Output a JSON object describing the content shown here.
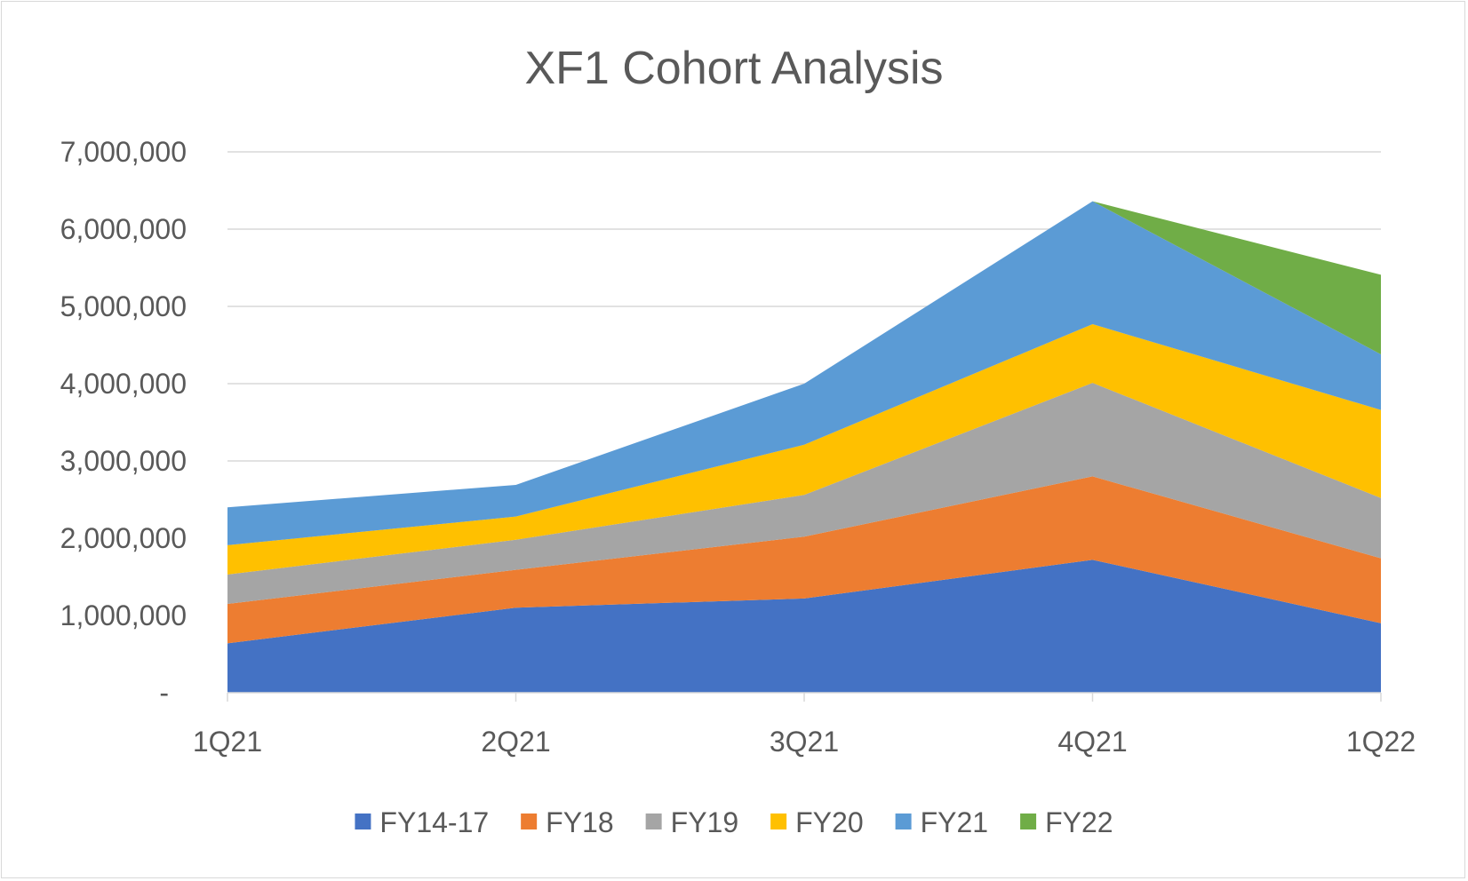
{
  "chart_data": {
    "type": "area",
    "stacked": true,
    "title": "XF1 Cohort Analysis",
    "xlabel": "",
    "ylabel": "",
    "categories": [
      "1Q21",
      "2Q21",
      "3Q21",
      "4Q21",
      "1Q22"
    ],
    "ylim": [
      0,
      7000000
    ],
    "yticks": [
      0,
      1000000,
      2000000,
      3000000,
      4000000,
      5000000,
      6000000,
      7000000
    ],
    "ytick_labels": [
      "-",
      "1,000,000",
      "2,000,000",
      "3,000,000",
      "4,000,000",
      "5,000,000",
      "6,000,000",
      "7,000,000"
    ],
    "grid": true,
    "legend_position": "bottom",
    "series": [
      {
        "name": "FY14-17",
        "color": "#4472C4",
        "values": [
          640000,
          1100000,
          1220000,
          1720000,
          900000
        ]
      },
      {
        "name": "FY18",
        "color": "#ED7D31",
        "values": [
          510000,
          490000,
          800000,
          1080000,
          840000
        ]
      },
      {
        "name": "FY19",
        "color": "#A5A5A5",
        "values": [
          380000,
          390000,
          540000,
          1210000,
          780000
        ]
      },
      {
        "name": "FY20",
        "color": "#FFC000",
        "values": [
          380000,
          300000,
          650000,
          760000,
          1140000
        ]
      },
      {
        "name": "FY21",
        "color": "#5B9BD5",
        "values": [
          490000,
          410000,
          790000,
          1590000,
          720000
        ]
      },
      {
        "name": "FY22",
        "color": "#70AD47",
        "values": [
          0,
          0,
          0,
          0,
          1030000
        ]
      }
    ]
  }
}
